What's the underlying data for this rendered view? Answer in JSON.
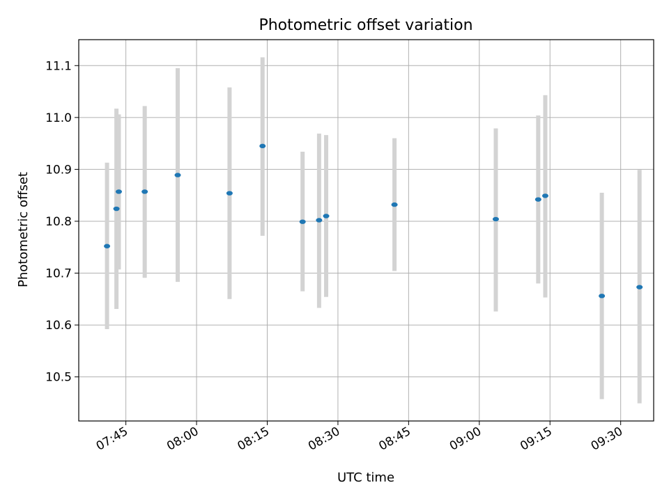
{
  "chart_data": {
    "type": "scatter",
    "title": "Photometric offset variation",
    "xlabel": "UTC time",
    "ylabel": "Photometric offset",
    "x_unit": "UTC time (HH:MM)",
    "x_ticks": [
      "07:45",
      "08:00",
      "08:15",
      "08:30",
      "08:45",
      "09:00",
      "09:15",
      "09:30"
    ],
    "y_ticks": [
      10.5,
      10.6,
      10.7,
      10.8,
      10.9,
      11.0,
      11.1
    ],
    "xlim": [
      "07:35",
      "09:37"
    ],
    "ylim": [
      10.415,
      11.15
    ],
    "grid": true,
    "marker_color": "#1f77b4",
    "errorbar_color": "#d3d3d3",
    "points": [
      {
        "x": "07:41",
        "y": 10.752,
        "lo": 10.592,
        "hi": 10.913
      },
      {
        "x": "07:43",
        "y": 10.824,
        "lo": 10.631,
        "hi": 11.017
      },
      {
        "x": "07:43.5",
        "y": 10.857,
        "lo": 10.707,
        "hi": 11.006
      },
      {
        "x": "07:49",
        "y": 10.857,
        "lo": 10.691,
        "hi": 11.022
      },
      {
        "x": "07:56",
        "y": 10.889,
        "lo": 10.683,
        "hi": 11.095
      },
      {
        "x": "08:07",
        "y": 10.854,
        "lo": 10.65,
        "hi": 11.058
      },
      {
        "x": "08:14",
        "y": 10.945,
        "lo": 10.772,
        "hi": 11.116
      },
      {
        "x": "08:22.5",
        "y": 10.799,
        "lo": 10.665,
        "hi": 10.934
      },
      {
        "x": "08:26",
        "y": 10.802,
        "lo": 10.633,
        "hi": 10.969
      },
      {
        "x": "08:27.5",
        "y": 10.81,
        "lo": 10.654,
        "hi": 10.966
      },
      {
        "x": "08:42",
        "y": 10.832,
        "lo": 10.704,
        "hi": 10.96
      },
      {
        "x": "09:03.5",
        "y": 10.804,
        "lo": 10.626,
        "hi": 10.979
      },
      {
        "x": "09:12.5",
        "y": 10.842,
        "lo": 10.68,
        "hi": 11.004
      },
      {
        "x": "09:14",
        "y": 10.849,
        "lo": 10.653,
        "hi": 11.043
      },
      {
        "x": "09:26",
        "y": 10.656,
        "lo": 10.457,
        "hi": 10.855
      },
      {
        "x": "09:34",
        "y": 10.673,
        "lo": 10.449,
        "hi": 10.899
      }
    ]
  }
}
